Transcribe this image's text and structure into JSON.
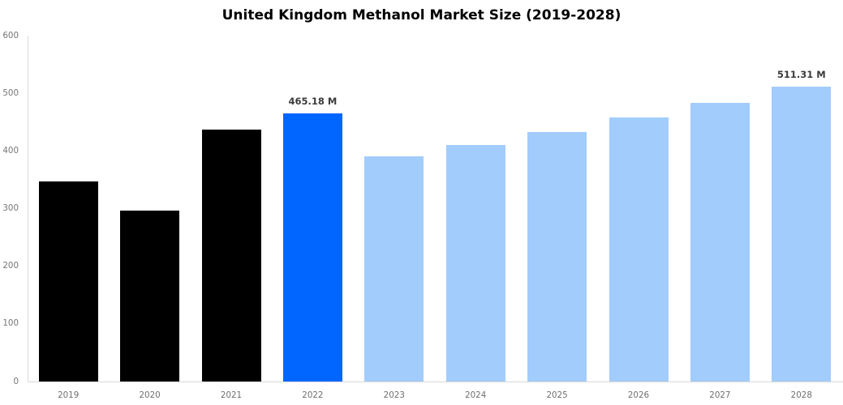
{
  "chart_data": {
    "type": "bar",
    "title": "United Kingdom Methanol Market Size (2019-2028)",
    "categories": [
      "2019",
      "2020",
      "2021",
      "2022",
      "2023",
      "2024",
      "2025",
      "2026",
      "2027",
      "2028"
    ],
    "values": [
      347.5,
      296.5,
      436.5,
      465.18,
      390.0,
      411.0,
      433.0,
      457.5,
      484.0,
      511.31
    ],
    "bar_styles": [
      "historical",
      "historical",
      "historical",
      "highlight",
      "forecast",
      "forecast",
      "forecast",
      "forecast",
      "forecast",
      "forecast"
    ],
    "style_colors": {
      "historical": "#000000",
      "highlight": "#0066ff",
      "forecast": "#a2ccfb"
    },
    "annotations": [
      {
        "index": 3,
        "text": "465.18 M"
      },
      {
        "index": 9,
        "text": "511.31 M"
      }
    ],
    "xlabel": "",
    "ylabel": "",
    "ylim": [
      0,
      600
    ],
    "ytick_step": 100,
    "grid": false,
    "legend": false,
    "axis_color": "#d9d9d9",
    "tick_color": "#767676"
  }
}
